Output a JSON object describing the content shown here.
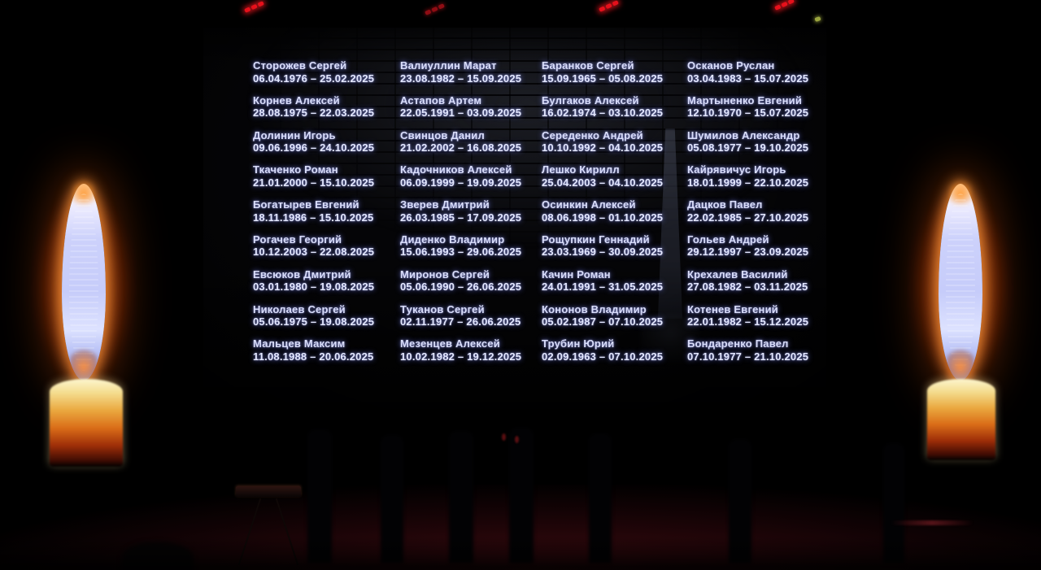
{
  "memorial": {
    "columns": [
      {
        "entries": [
          {
            "name": "Сторожев Сергей",
            "dates": "06.04.1976 – 25.02.2025"
          },
          {
            "name": "Корнев Алексей",
            "dates": "28.08.1975 – 22.03.2025"
          },
          {
            "name": "Долинин Игорь",
            "dates": "09.06.1996 – 24.10.2025"
          },
          {
            "name": "Ткаченко Роман",
            "dates": "21.01.2000 – 15.10.2025"
          },
          {
            "name": "Богатырев Евгений",
            "dates": "18.11.1986 – 15.10.2025"
          },
          {
            "name": "Рогачев Георгий",
            "dates": "10.12.2003 – 22.08.2025"
          },
          {
            "name": "Евсюков Дмитрий",
            "dates": "03.01.1980 – 19.08.2025"
          },
          {
            "name": "Николаев Сергей",
            "dates": "05.06.1975 – 19.08.2025"
          },
          {
            "name": "Мальцев Максим",
            "dates": "11.08.1988 – 20.06.2025"
          }
        ]
      },
      {
        "entries": [
          {
            "name": "Валиуллин Марат",
            "dates": "23.08.1982 – 15.09.2025"
          },
          {
            "name": "Астапов Артем",
            "dates": "22.05.1991 – 03.09.2025"
          },
          {
            "name": "Свинцов Данил",
            "dates": "21.02.2002 – 16.08.2025"
          },
          {
            "name": "Кадочников Алексей",
            "dates": "06.09.1999 – 19.09.2025"
          },
          {
            "name": "Зверев Дмитрий",
            "dates": "26.03.1985 – 17.09.2025"
          },
          {
            "name": "Диденко Владимир",
            "dates": "15.06.1993 – 29.06.2025"
          },
          {
            "name": "Миронов Сергей",
            "dates": "05.06.1990 – 26.06.2025"
          },
          {
            "name": "Туканов Сергей",
            "dates": "02.11.1977 – 26.06.2025"
          },
          {
            "name": "Мезенцев Алексей",
            "dates": "10.02.1982 – 19.12.2025"
          }
        ]
      },
      {
        "entries": [
          {
            "name": "Баранков Сергей",
            "dates": "15.09.1965 – 05.08.2025"
          },
          {
            "name": "Булгаков Алексей",
            "dates": "16.02.1974 – 03.10.2025"
          },
          {
            "name": "Середенко Андрей",
            "dates": "10.10.1992 – 04.10.2025"
          },
          {
            "name": "Лешко Кирилл",
            "dates": "25.04.2003 – 04.10.2025"
          },
          {
            "name": "Осинкин Алексей",
            "dates": "08.06.1998 – 01.10.2025"
          },
          {
            "name": "Рощупкин Геннадий",
            "dates": "23.03.1969 – 30.09.2025"
          },
          {
            "name": "Качин Роман",
            "dates": "24.01.1991 – 31.05.2025"
          },
          {
            "name": "Кононов Владимир",
            "dates": "05.02.1987 – 07.10.2025"
          },
          {
            "name": "Трубин Юрий",
            "dates": "02.09.1963 – 07.10.2025"
          }
        ]
      },
      {
        "entries": [
          {
            "name": "Осканов Руслан",
            "dates": "03.04.1983 – 15.07.2025"
          },
          {
            "name": "Мартыненко Евгений",
            "dates": "12.10.1970 – 15.07.2025"
          },
          {
            "name": "Шумилов Александр",
            "dates": "05.08.1977 – 19.10.2025"
          },
          {
            "name": "Кайрявичус Игорь",
            "dates": "18.01.1999 – 22.10.2025"
          },
          {
            "name": "Дацков Павел",
            "dates": "22.02.1985 – 27.10.2025"
          },
          {
            "name": "Гольев Андрей",
            "dates": "29.12.1997 – 23.09.2025"
          },
          {
            "name": "Крехалев Василий",
            "dates": "27.08.1982 – 03.11.2025"
          },
          {
            "name": "Котенев Евгений",
            "dates": "22.01.1982 – 15.12.2025"
          },
          {
            "name": "Бондаренко Павел",
            "dates": "07.10.1977 – 21.10.2025"
          }
        ]
      }
    ]
  },
  "colors": {
    "text": "#d9ddfa",
    "text_glow": "#6e7aeb",
    "flame_core": "#c6ccfa",
    "flame_halo": "#ff7819",
    "candle_top": "#fdf6cf",
    "candle_mid": "#da6d18",
    "candle_bottom": "#3f0c03",
    "floor_red": "#70121c",
    "stage_light_red": "#e5101b",
    "stage_light_teal": "#9aa43e"
  }
}
